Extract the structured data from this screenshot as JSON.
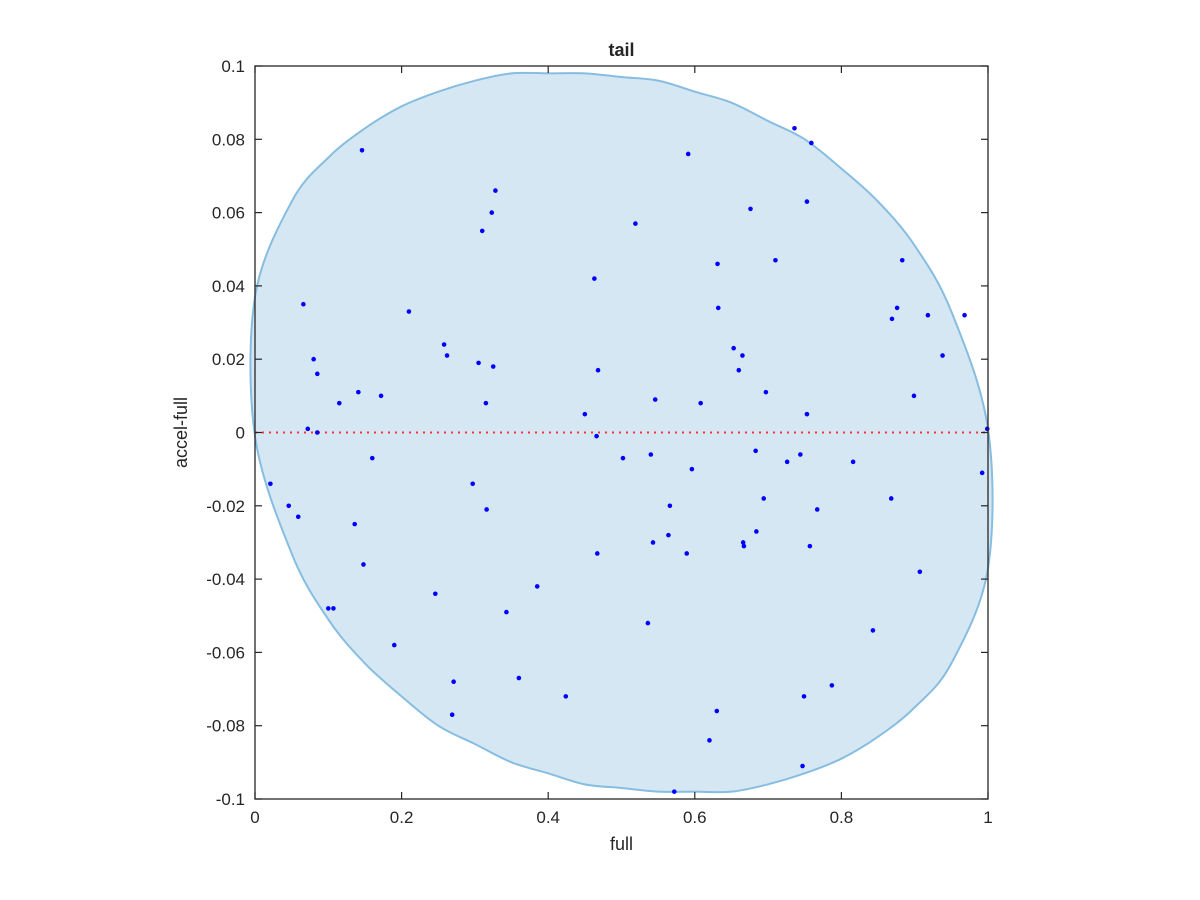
{
  "chart_data": {
    "type": "scatter",
    "title": "tail",
    "xlabel": "full",
    "ylabel": "accel-full",
    "xlim": [
      0,
      1
    ],
    "ylim": [
      -0.1,
      0.1
    ],
    "xticks": [
      0,
      0.2,
      0.4,
      0.6,
      0.8,
      1
    ],
    "xtick_labels": [
      "0",
      "0.2",
      "0.4",
      "0.6",
      "0.8",
      "1"
    ],
    "yticks": [
      0.1,
      0.08,
      0.06,
      0.04,
      0.02,
      0,
      -0.02,
      -0.04,
      -0.06,
      -0.08,
      -0.1
    ],
    "ytick_labels": [
      "0.1",
      "0.08",
      "0.06",
      "0.04",
      "0.02",
      "0",
      "-0.02",
      "-0.04",
      "-0.06",
      "-0.08",
      "-0.1"
    ],
    "grid": false,
    "colors": {
      "points": "#0000ff",
      "region_fill": "#d6e7f4",
      "region_edge": "#86bde0",
      "reference_line": "#ff3333",
      "axes": "#262626"
    },
    "reference_line": {
      "y": 0,
      "style": "dotted"
    },
    "region": {
      "shape": "ellipse",
      "upper": [
        [
          0,
          0.037
        ],
        [
          0.05,
          0.063
        ],
        [
          0.1,
          0.075
        ],
        [
          0.15,
          0.083
        ],
        [
          0.2,
          0.089
        ],
        [
          0.25,
          0.093
        ],
        [
          0.3,
          0.096
        ],
        [
          0.35,
          0.098
        ],
        [
          0.4,
          0.098
        ],
        [
          0.45,
          0.098
        ],
        [
          0.5,
          0.097
        ],
        [
          0.55,
          0.096
        ],
        [
          0.6,
          0.093
        ],
        [
          0.65,
          0.09
        ],
        [
          0.7,
          0.085
        ],
        [
          0.75,
          0.08
        ],
        [
          0.8,
          0.072
        ],
        [
          0.85,
          0.063
        ],
        [
          0.9,
          0.051
        ],
        [
          0.95,
          0.033
        ],
        [
          1,
          0.001
        ]
      ],
      "lower": [
        [
          0,
          -0.001
        ],
        [
          0.05,
          -0.033
        ],
        [
          0.1,
          -0.051
        ],
        [
          0.15,
          -0.063
        ],
        [
          0.2,
          -0.072
        ],
        [
          0.25,
          -0.08
        ],
        [
          0.3,
          -0.085
        ],
        [
          0.35,
          -0.09
        ],
        [
          0.4,
          -0.093
        ],
        [
          0.45,
          -0.096
        ],
        [
          0.5,
          -0.097
        ],
        [
          0.55,
          -0.098
        ],
        [
          0.6,
          -0.098
        ],
        [
          0.65,
          -0.098
        ],
        [
          0.7,
          -0.096
        ],
        [
          0.75,
          -0.093
        ],
        [
          0.8,
          -0.089
        ],
        [
          0.85,
          -0.083
        ],
        [
          0.9,
          -0.075
        ],
        [
          0.95,
          -0.063
        ],
        [
          1,
          -0.037
        ]
      ]
    },
    "points": [
      [
        0.021,
        -0.014
      ],
      [
        0.046,
        -0.02
      ],
      [
        0.059,
        -0.023
      ],
      [
        0.066,
        0.035
      ],
      [
        0.072,
        0.001
      ],
      [
        0.08,
        0.02
      ],
      [
        0.085,
        0.016
      ],
      [
        0.085,
        0.0
      ],
      [
        0.1,
        -0.048
      ],
      [
        0.107,
        -0.048
      ],
      [
        0.115,
        0.008
      ],
      [
        0.136,
        -0.025
      ],
      [
        0.141,
        0.011
      ],
      [
        0.146,
        0.077
      ],
      [
        0.148,
        -0.036
      ],
      [
        0.16,
        -0.007
      ],
      [
        0.172,
        0.01
      ],
      [
        0.19,
        -0.058
      ],
      [
        0.21,
        0.033
      ],
      [
        0.246,
        -0.044
      ],
      [
        0.258,
        0.024
      ],
      [
        0.262,
        0.021
      ],
      [
        0.269,
        -0.077
      ],
      [
        0.271,
        -0.068
      ],
      [
        0.297,
        -0.014
      ],
      [
        0.305,
        0.019
      ],
      [
        0.31,
        0.055
      ],
      [
        0.315,
        0.008
      ],
      [
        0.316,
        -0.021
      ],
      [
        0.323,
        0.06
      ],
      [
        0.325,
        0.018
      ],
      [
        0.328,
        0.066
      ],
      [
        0.343,
        -0.049
      ],
      [
        0.36,
        -0.067
      ],
      [
        0.385,
        -0.042
      ],
      [
        0.424,
        -0.072
      ],
      [
        0.45,
        0.005
      ],
      [
        0.463,
        0.042
      ],
      [
        0.466,
        -0.001
      ],
      [
        0.467,
        -0.033
      ],
      [
        0.468,
        0.017
      ],
      [
        0.502,
        -0.007
      ],
      [
        0.519,
        0.057
      ],
      [
        0.536,
        -0.052
      ],
      [
        0.54,
        -0.006
      ],
      [
        0.543,
        -0.03
      ],
      [
        0.546,
        0.009
      ],
      [
        0.564,
        -0.028
      ],
      [
        0.566,
        -0.02
      ],
      [
        0.572,
        -0.098
      ],
      [
        0.589,
        -0.033
      ],
      [
        0.591,
        0.076
      ],
      [
        0.596,
        -0.01
      ],
      [
        0.608,
        0.008
      ],
      [
        0.62,
        -0.084
      ],
      [
        0.63,
        -0.076
      ],
      [
        0.631,
        0.046
      ],
      [
        0.632,
        0.034
      ],
      [
        0.653,
        0.023
      ],
      [
        0.66,
        0.017
      ],
      [
        0.665,
        0.021
      ],
      [
        0.666,
        -0.03
      ],
      [
        0.667,
        -0.031
      ],
      [
        0.676,
        0.061
      ],
      [
        0.683,
        -0.005
      ],
      [
        0.684,
        -0.027
      ],
      [
        0.694,
        -0.018
      ],
      [
        0.697,
        0.011
      ],
      [
        0.71,
        0.047
      ],
      [
        0.726,
        -0.008
      ],
      [
        0.736,
        0.083
      ],
      [
        0.744,
        -0.006
      ],
      [
        0.747,
        -0.091
      ],
      [
        0.749,
        -0.072
      ],
      [
        0.753,
        0.063
      ],
      [
        0.753,
        0.005
      ],
      [
        0.757,
        -0.031
      ],
      [
        0.759,
        0.079
      ],
      [
        0.767,
        -0.021
      ],
      [
        0.787,
        -0.069
      ],
      [
        0.816,
        -0.008
      ],
      [
        0.843,
        -0.054
      ],
      [
        0.868,
        -0.018
      ],
      [
        0.869,
        0.031
      ],
      [
        0.876,
        0.034
      ],
      [
        0.883,
        0.047
      ],
      [
        0.899,
        0.01
      ],
      [
        0.907,
        -0.038
      ],
      [
        0.918,
        0.032
      ],
      [
        0.938,
        0.021
      ],
      [
        0.968,
        0.032
      ],
      [
        0.992,
        -0.011
      ],
      [
        0.999,
        0.001
      ]
    ]
  }
}
